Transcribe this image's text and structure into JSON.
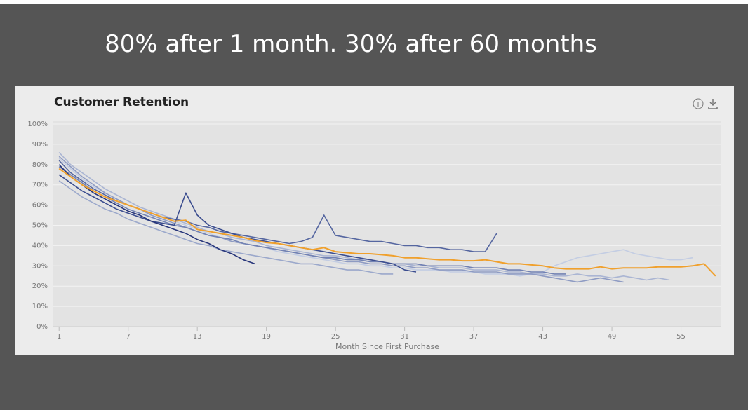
{
  "headline": "80% after 1 month. 30% after 60 months",
  "chart_data": {
    "type": "line",
    "title": "Customer Retention",
    "x_label": "Month Since First Purchase",
    "x": [
      1,
      2,
      3,
      4,
      5,
      6,
      7,
      8,
      9,
      10,
      11,
      12,
      13,
      14,
      15,
      16,
      17,
      18,
      19,
      20,
      21,
      22,
      23,
      24,
      25,
      26,
      27,
      28,
      29,
      30,
      31,
      32,
      33,
      34,
      35,
      36,
      37,
      38,
      39,
      40,
      41,
      42,
      43,
      44,
      45,
      46,
      47,
      48,
      49,
      50,
      51,
      52,
      53,
      54,
      55,
      56,
      57,
      58
    ],
    "xlim": [
      0.5,
      58.5
    ],
    "xticks": [
      1,
      7,
      13,
      19,
      25,
      31,
      37,
      43,
      49,
      55
    ],
    "ylim": [
      0,
      100
    ],
    "yticks": [
      {
        "value": 0,
        "label": "0%"
      },
      {
        "value": 10,
        "label": "10%"
      },
      {
        "value": 20,
        "label": "20%"
      },
      {
        "value": 30,
        "label": "30%"
      },
      {
        "value": 40,
        "label": "40%"
      },
      {
        "value": 50,
        "label": "50%"
      },
      {
        "value": 60,
        "label": "60%"
      },
      {
        "value": 70,
        "label": "70%"
      },
      {
        "value": 80,
        "label": "80%"
      },
      {
        "value": 90,
        "label": "90%"
      },
      {
        "value": 100,
        "label": "100%"
      }
    ],
    "grid": true,
    "series": [
      {
        "color": "#c3cde3",
        "values": [
          83,
          78,
          73,
          69,
          66,
          63,
          60,
          58,
          56,
          54,
          52,
          50,
          48,
          46,
          44,
          43,
          41,
          40,
          39,
          37,
          36,
          35,
          34,
          33,
          32,
          31,
          31,
          30,
          30,
          29,
          29,
          28,
          28,
          28,
          27,
          27,
          27,
          26,
          26,
          26,
          25,
          26,
          27,
          30,
          32,
          34,
          35,
          36,
          37,
          38,
          36,
          35,
          34,
          33,
          33,
          34,
          null,
          null
        ]
      },
      {
        "color": "#aab5d3",
        "values": [
          86,
          80,
          76,
          72,
          68,
          65,
          62,
          59,
          57,
          55,
          53,
          51,
          49,
          47,
          46,
          44,
          43,
          42,
          40,
          39,
          38,
          37,
          36,
          35,
          35,
          34,
          33,
          33,
          32,
          31,
          31,
          30,
          30,
          29,
          29,
          29,
          28,
          28,
          28,
          27,
          27,
          26,
          26,
          25,
          25,
          26,
          25,
          25,
          24,
          25,
          24,
          23,
          24,
          23,
          null,
          null,
          null,
          null
        ]
      },
      {
        "color": "#9ba8cb",
        "values": [
          72,
          68,
          64,
          61,
          58,
          56,
          53,
          51,
          49,
          47,
          45,
          43,
          41,
          40,
          38,
          37,
          36,
          35,
          34,
          33,
          32,
          31,
          31,
          30,
          29,
          28,
          28,
          27,
          26,
          26,
          null,
          null,
          null,
          null,
          null,
          null,
          null,
          null,
          null,
          null,
          null,
          null,
          null,
          null,
          null,
          null,
          null,
          null,
          null,
          null,
          null,
          null,
          null,
          null,
          null,
          null,
          null,
          null
        ]
      },
      {
        "color": "#8e9bc3",
        "values": [
          84,
          79,
          74,
          70,
          66,
          63,
          60,
          58,
          55,
          53,
          51,
          49,
          47,
          45,
          44,
          42,
          41,
          40,
          39,
          38,
          37,
          36,
          35,
          34,
          33,
          32,
          32,
          31,
          31,
          30,
          30,
          29,
          29,
          28,
          28,
          28,
          27,
          27,
          27,
          26,
          26,
          26,
          25,
          24,
          23,
          22,
          23,
          24,
          23,
          22,
          null,
          null,
          null,
          null,
          null,
          null,
          null,
          null
        ]
      },
      {
        "color": "#7282b3",
        "values": [
          79,
          75,
          71,
          67,
          64,
          61,
          58,
          56,
          54,
          52,
          50,
          49,
          47,
          45,
          44,
          43,
          41,
          40,
          39,
          38,
          37,
          36,
          35,
          34,
          34,
          33,
          33,
          32,
          32,
          31,
          31,
          31,
          30,
          30,
          30,
          30,
          29,
          29,
          29,
          28,
          28,
          27,
          27,
          26,
          26,
          null,
          null,
          null,
          null,
          null,
          null,
          null,
          null,
          null,
          null,
          null,
          null,
          null
        ]
      },
      {
        "color": "#5566a0",
        "values": [
          82,
          76,
          72,
          68,
          65,
          62,
          60,
          58,
          56,
          54,
          53,
          52,
          50,
          49,
          47,
          46,
          45,
          44,
          43,
          42,
          41,
          42,
          44,
          55,
          45,
          44,
          43,
          42,
          42,
          41,
          40,
          40,
          39,
          39,
          38,
          38,
          37,
          37,
          46,
          null,
          null,
          null,
          null,
          null,
          null,
          null,
          null,
          null,
          null,
          null,
          null,
          null,
          null,
          null,
          null,
          null,
          null,
          null
        ]
      },
      {
        "color": "#3b4d8f",
        "values": [
          75,
          71,
          67,
          64,
          61,
          58,
          56,
          54,
          52,
          51,
          50,
          66,
          55,
          50,
          48,
          46,
          44,
          43,
          42,
          41,
          40,
          39,
          38,
          37,
          36,
          35,
          34,
          33,
          32,
          31,
          28,
          27,
          null,
          null,
          null,
          null,
          null,
          null,
          null,
          null,
          null,
          null,
          null,
          null,
          null,
          null,
          null,
          null,
          null,
          null,
          null,
          null,
          null,
          null,
          null,
          null,
          null,
          null
        ]
      },
      {
        "color": "#27357a",
        "values": [
          80,
          74,
          70,
          66,
          63,
          60,
          57,
          55,
          52,
          50,
          48,
          46,
          43,
          41,
          38,
          36,
          33,
          31,
          null,
          null,
          null,
          null,
          null,
          null,
          null,
          null,
          null,
          null,
          null,
          null,
          null,
          null,
          null,
          null,
          null,
          null,
          null,
          null,
          null,
          null,
          null,
          null,
          null,
          null,
          null,
          null,
          null,
          null,
          null,
          null,
          null,
          null,
          null,
          null,
          null,
          null,
          null,
          null
        ]
      },
      {
        "color": "#f0a02c",
        "values": [
          78,
          74,
          70,
          67,
          64,
          62,
          60,
          58,
          56,
          54,
          52,
          52.5,
          48,
          47,
          46,
          45,
          44,
          42.5,
          41.5,
          41,
          40,
          39,
          38,
          39,
          37,
          36.5,
          36,
          36,
          35.5,
          35,
          34,
          34,
          33.5,
          33,
          33,
          32.5,
          32.5,
          33,
          32,
          31,
          31,
          30.5,
          30,
          29,
          28.5,
          28.5,
          28.5,
          29.5,
          28.5,
          29,
          29,
          29,
          29.5,
          29.5,
          29.5,
          30,
          31,
          25
        ]
      }
    ]
  }
}
